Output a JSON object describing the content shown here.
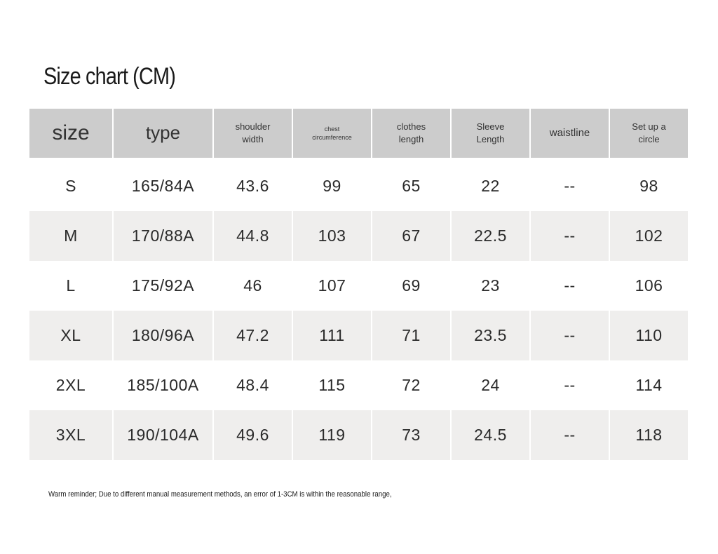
{
  "header": {
    "title": "Size chart (CM)"
  },
  "table": {
    "columns": [
      "size",
      "type",
      "shoulder width",
      "chest circumference",
      "clothes length",
      "Sleeve Length",
      "waistline",
      "Set up a circle"
    ],
    "rows": [
      [
        "S",
        "165/84A",
        "43.6",
        "99",
        "65",
        "22",
        "--",
        "98"
      ],
      [
        "M",
        "170/88A",
        "44.8",
        "103",
        "67",
        "22.5",
        "--",
        "102"
      ],
      [
        "L",
        "175/92A",
        "46",
        "107",
        "69",
        "23",
        "--",
        "106"
      ],
      [
        "XL",
        "180/96A",
        "47.2",
        "111",
        "71",
        "23.5",
        "--",
        "110"
      ],
      [
        "2XL",
        "185/100A",
        "48.4",
        "115",
        "72",
        "24",
        "--",
        "114"
      ],
      [
        "3XL",
        "190/104A",
        "49.6",
        "119",
        "73",
        "24.5",
        "--",
        "118"
      ]
    ]
  },
  "footer": {
    "note": "Warm reminder; Due to different manual measurement methods, an error of 1-3CM is within the reasonable range,"
  }
}
